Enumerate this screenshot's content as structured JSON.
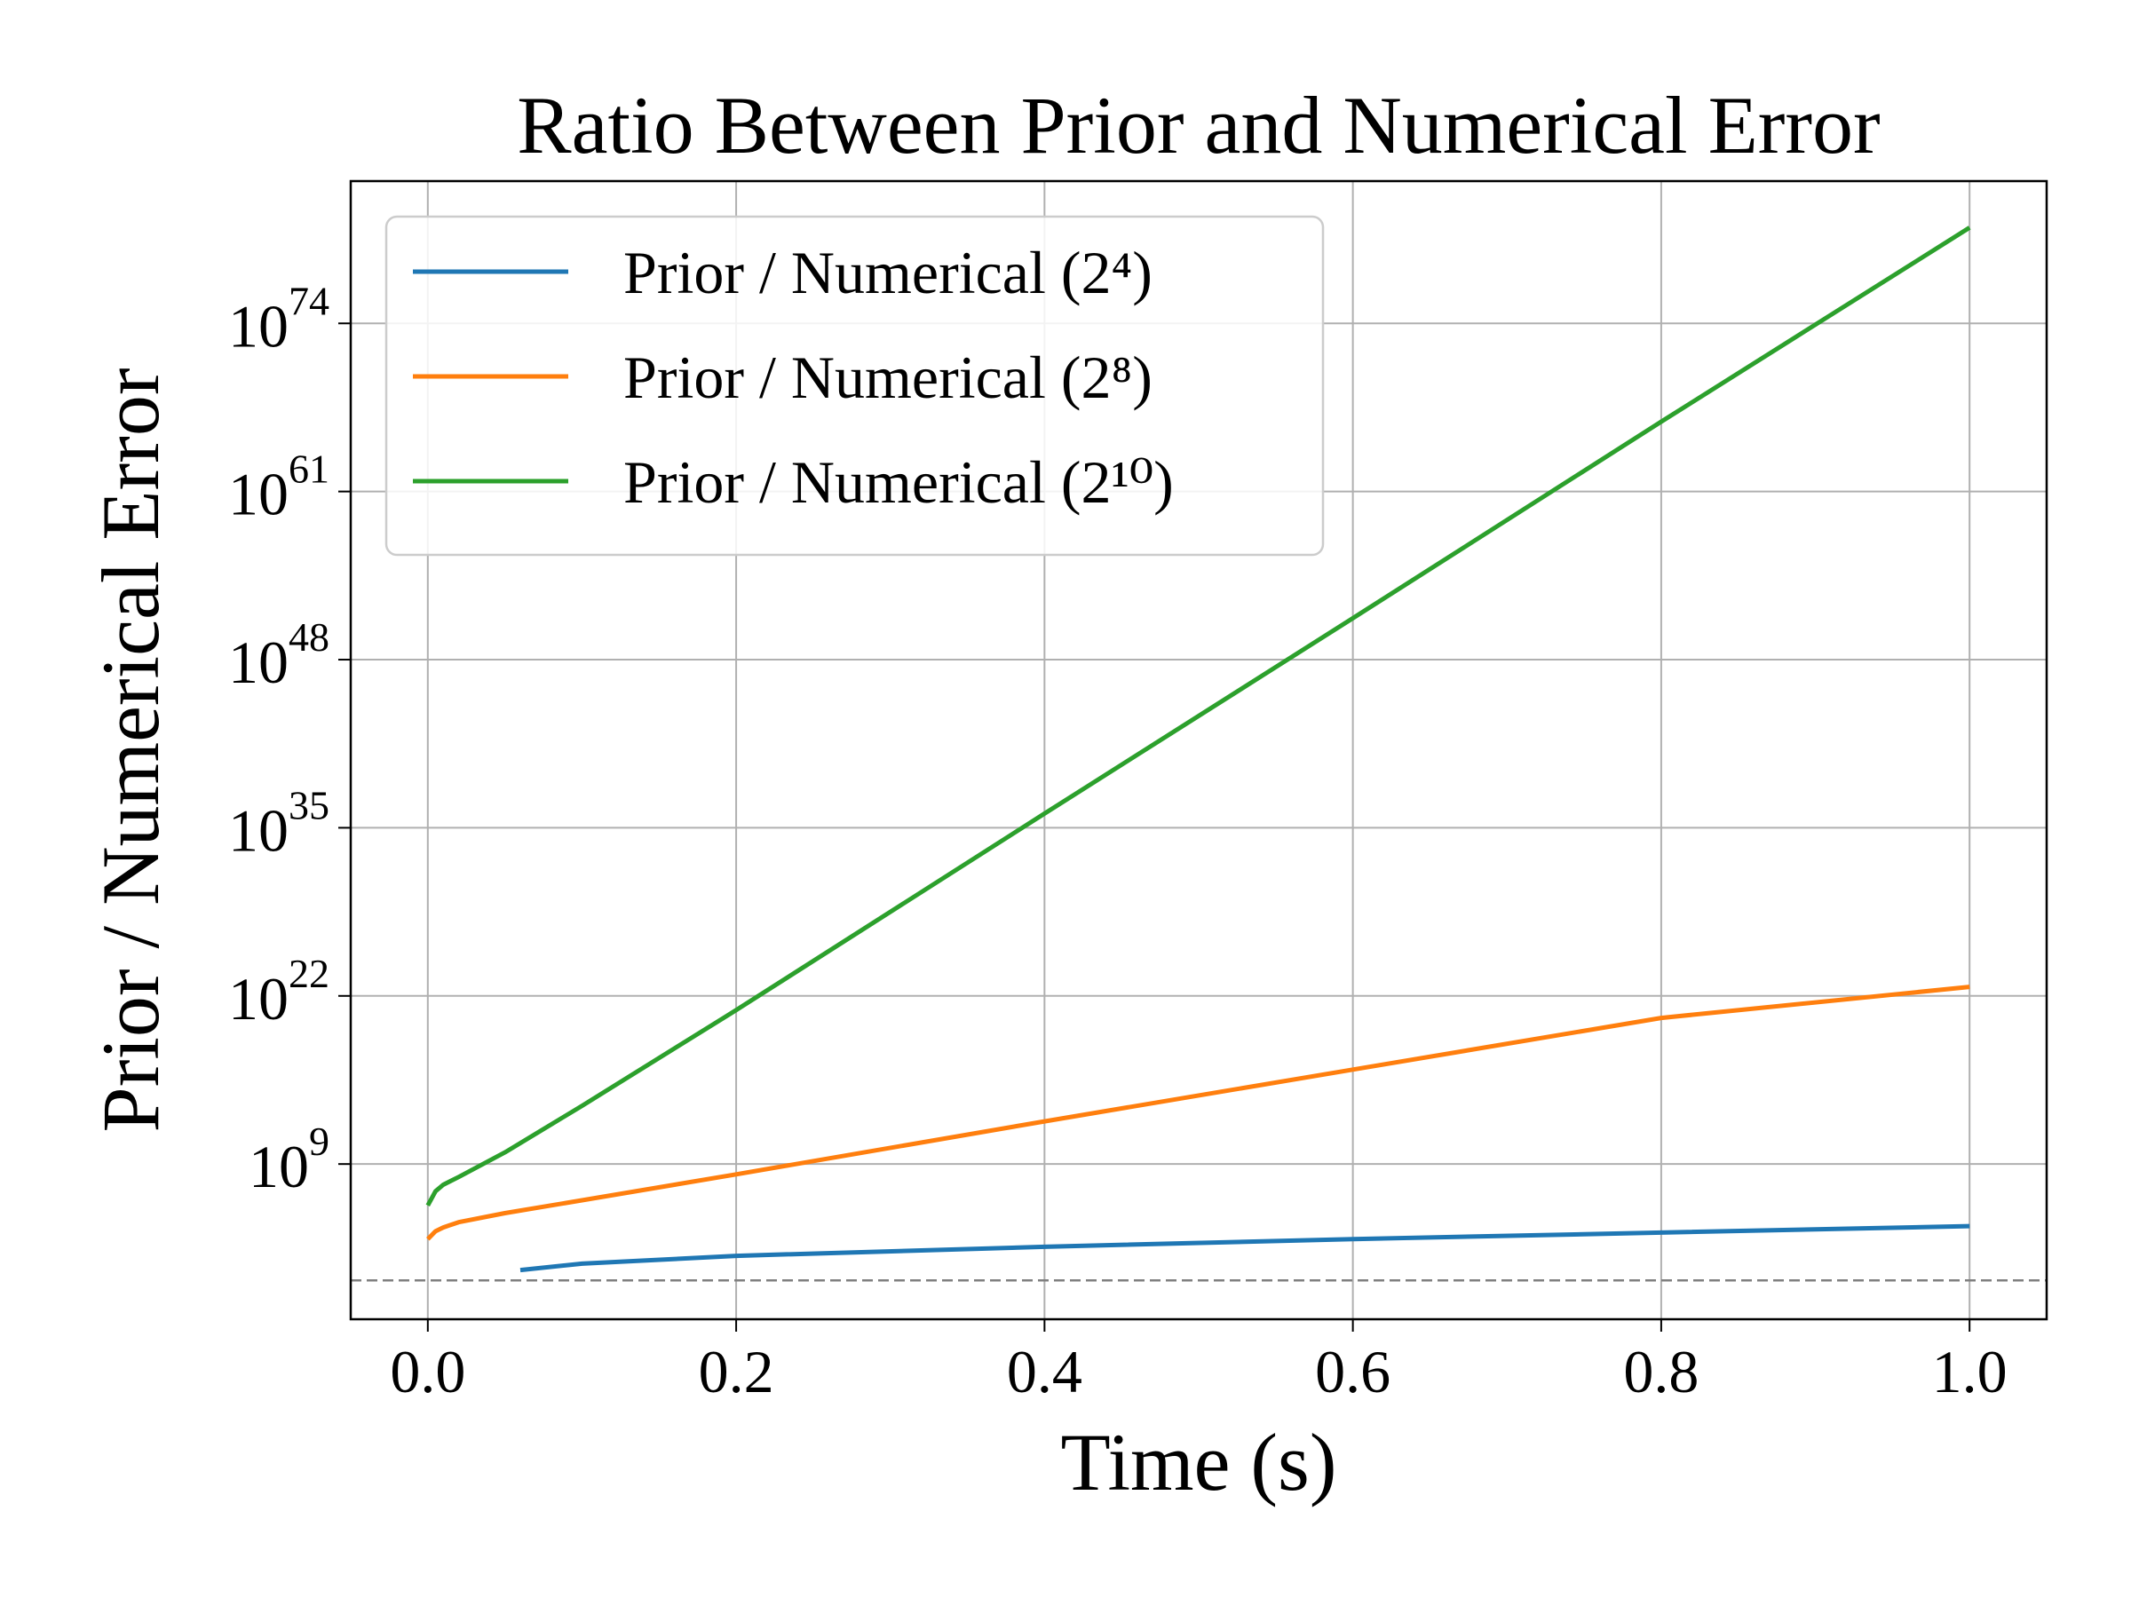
{
  "chart_data": {
    "type": "line",
    "title": "Ratio Between Prior and Numerical Error",
    "xlabel": "Time (s)",
    "ylabel": "Prior / Numerical Error",
    "xlim": [
      -0.05,
      1.05
    ],
    "ylog10lim": [
      -3,
      85
    ],
    "y_scale": "log",
    "grid": true,
    "legend_position": "top-left",
    "xticks": [
      {
        "value": 0.0,
        "label": "0.0"
      },
      {
        "value": 0.2,
        "label": "0.2"
      },
      {
        "value": 0.4,
        "label": "0.4"
      },
      {
        "value": 0.6,
        "label": "0.6"
      },
      {
        "value": 0.8,
        "label": "0.8"
      },
      {
        "value": 1.0,
        "label": "1.0"
      }
    ],
    "yticks": [
      {
        "exp": 9,
        "base": "10",
        "sup": "9"
      },
      {
        "exp": 22,
        "base": "10",
        "sup": "22"
      },
      {
        "exp": 35,
        "base": "10",
        "sup": "35"
      },
      {
        "exp": 48,
        "base": "10",
        "sup": "48"
      },
      {
        "exp": 61,
        "base": "10",
        "sup": "61"
      },
      {
        "exp": 74,
        "base": "10",
        "sup": "74"
      }
    ],
    "reference_line": {
      "log10y": 0,
      "color": "#808080",
      "style": "dashed"
    },
    "series": [
      {
        "name": "Prior / Numerical (2⁴)",
        "color": "#1f77b4",
        "points": [
          [
            0.06,
            0.8
          ],
          [
            0.1,
            1.3
          ],
          [
            0.2,
            1.9
          ],
          [
            0.4,
            2.6
          ],
          [
            0.6,
            3.2
          ],
          [
            0.8,
            3.7
          ],
          [
            1.0,
            4.2
          ]
        ]
      },
      {
        "name": "Prior / Numerical (2⁸)",
        "color": "#ff7f0e",
        "points": [
          [
            0.0,
            3.2
          ],
          [
            0.005,
            3.8
          ],
          [
            0.01,
            4.1
          ],
          [
            0.02,
            4.5
          ],
          [
            0.05,
            5.2
          ],
          [
            0.1,
            6.2
          ],
          [
            0.2,
            8.2
          ],
          [
            0.4,
            12.3
          ],
          [
            0.6,
            16.3
          ],
          [
            0.8,
            20.3
          ],
          [
            1.0,
            22.7
          ]
        ]
      },
      {
        "name": "Prior / Numerical (2¹⁰)",
        "color": "#2ca02c",
        "points": [
          [
            0.0,
            5.8
          ],
          [
            0.005,
            6.9
          ],
          [
            0.01,
            7.4
          ],
          [
            0.02,
            8.0
          ],
          [
            0.05,
            9.9
          ],
          [
            0.1,
            13.5
          ],
          [
            0.2,
            20.9
          ],
          [
            0.4,
            36.1
          ],
          [
            0.6,
            51.2
          ],
          [
            0.8,
            66.4
          ],
          [
            1.0,
            81.4
          ]
        ]
      }
    ]
  }
}
